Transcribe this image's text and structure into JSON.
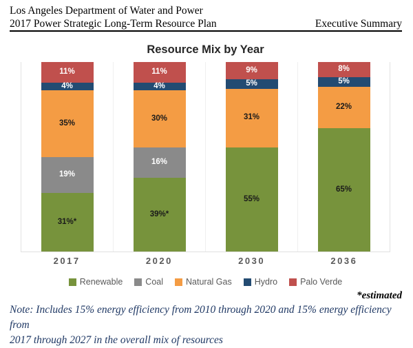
{
  "header": {
    "line1": "Los Angeles Department of Water and Power",
    "line2_left": "2017 Power Strategic Long-Term Resource Plan",
    "line2_right": "Executive Summary"
  },
  "chart_data": {
    "type": "bar",
    "stacked": true,
    "title": "Resource Mix by Year",
    "categories": [
      "2017",
      "2020",
      "2030",
      "2036"
    ],
    "unit": "%",
    "ylim": [
      0,
      100
    ],
    "grid": "vertical-category-separators",
    "legend_position": "bottom",
    "series": [
      {
        "name": "Renewable",
        "color": "#77933c",
        "label_color": "#1a1a1a",
        "values": [
          31,
          39,
          55,
          65
        ],
        "labels": [
          "31%*",
          "39%*",
          "55%",
          "65%"
        ]
      },
      {
        "name": "Coal",
        "color": "#8a8a8a",
        "label_color": "#ffffff",
        "values": [
          19,
          16,
          0,
          0
        ],
        "labels": [
          "19%",
          "16%",
          "",
          ""
        ]
      },
      {
        "name": "Natural Gas",
        "color": "#f49c44",
        "label_color": "#1a1a1a",
        "values": [
          35,
          30,
          31,
          22
        ],
        "labels": [
          "35%",
          "30%",
          "31%",
          "22%"
        ]
      },
      {
        "name": "Hydro",
        "color": "#234b72",
        "label_color": "#ffffff",
        "values": [
          4,
          4,
          5,
          5
        ],
        "labels": [
          "4%",
          "4%",
          "5%",
          "5%"
        ]
      },
      {
        "name": "Palo Verde",
        "color": "#c0504d",
        "label_color": "#ffffff",
        "values": [
          11,
          11,
          9,
          8
        ],
        "labels": [
          "11%",
          "11%",
          "9%",
          "8%"
        ]
      }
    ]
  },
  "footnote": {
    "estimated": "*estimated",
    "note_lines": [
      "Note: Includes 15% energy efficiency from 2010 through 2020 and 15% energy efficiency from",
      "2017 through 2027 in the overall mix of resources"
    ]
  }
}
